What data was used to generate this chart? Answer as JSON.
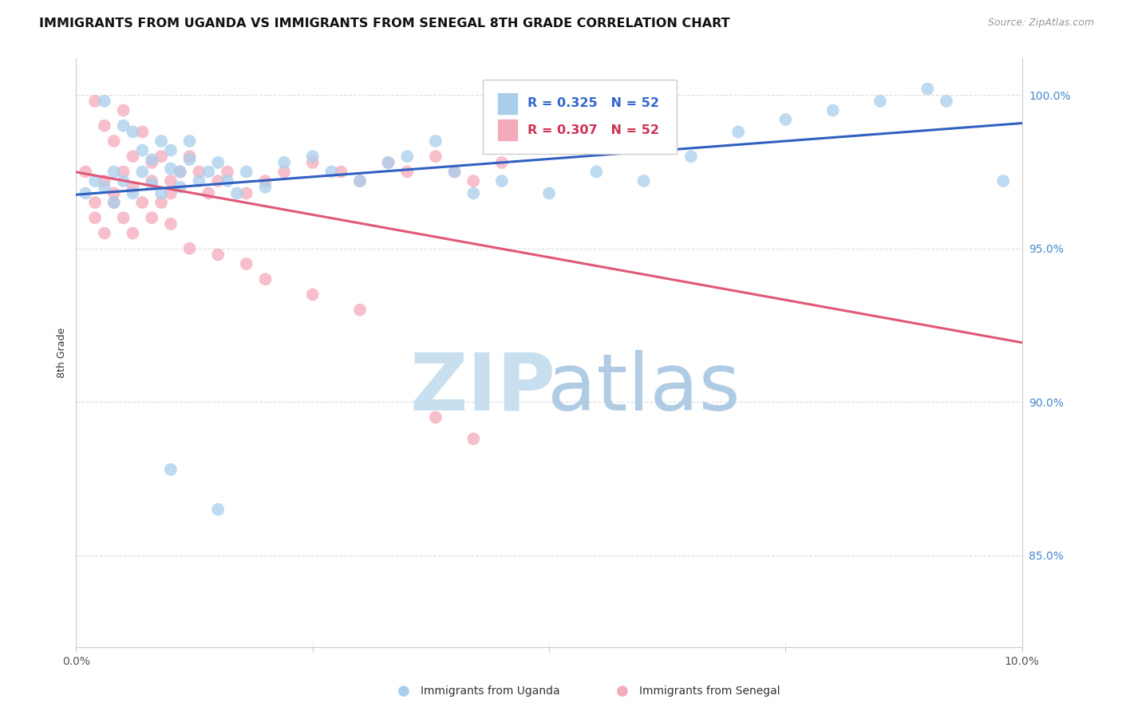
{
  "title": "IMMIGRANTS FROM UGANDA VS IMMIGRANTS FROM SENEGAL 8TH GRADE CORRELATION CHART",
  "source": "Source: ZipAtlas.com",
  "ylabel": "8th Grade",
  "y_ticks": [
    0.85,
    0.9,
    0.95,
    1.0
  ],
  "y_tick_labels": [
    "85.0%",
    "90.0%",
    "95.0%",
    "100.0%"
  ],
  "x_range": [
    0.0,
    0.1
  ],
  "y_range": [
    0.82,
    1.012
  ],
  "r_uganda": 0.325,
  "n_uganda": 52,
  "r_senegal": 0.307,
  "n_senegal": 52,
  "legend_label_uganda": "Immigrants from Uganda",
  "legend_label_senegal": "Immigrants from Senegal",
  "color_uganda": "#A8CEEC",
  "color_senegal": "#F5AABB",
  "line_color_uganda": "#3060C0",
  "line_color_senegal": "#E05878",
  "watermark_zip_color": "#C8DFF0",
  "watermark_atlas_color": "#B0CCE4",
  "uganda_x": [
    0.001,
    0.002,
    0.003,
    0.003,
    0.004,
    0.004,
    0.005,
    0.005,
    0.006,
    0.006,
    0.007,
    0.007,
    0.008,
    0.008,
    0.009,
    0.009,
    0.01,
    0.01,
    0.011,
    0.011,
    0.012,
    0.012,
    0.013,
    0.014,
    0.015,
    0.016,
    0.017,
    0.018,
    0.02,
    0.022,
    0.025,
    0.027,
    0.03,
    0.033,
    0.035,
    0.038,
    0.04,
    0.042,
    0.045,
    0.05,
    0.055,
    0.06,
    0.065,
    0.07,
    0.075,
    0.08,
    0.085,
    0.09,
    0.01,
    0.015,
    0.092,
    0.098
  ],
  "uganda_y": [
    0.968,
    0.972,
    0.97,
    0.998,
    0.975,
    0.965,
    0.99,
    0.972,
    0.988,
    0.968,
    0.982,
    0.975,
    0.979,
    0.971,
    0.985,
    0.968,
    0.976,
    0.982,
    0.975,
    0.97,
    0.985,
    0.979,
    0.972,
    0.975,
    0.978,
    0.972,
    0.968,
    0.975,
    0.97,
    0.978,
    0.98,
    0.975,
    0.972,
    0.978,
    0.98,
    0.985,
    0.975,
    0.968,
    0.972,
    0.968,
    0.975,
    0.972,
    0.98,
    0.988,
    0.992,
    0.995,
    0.998,
    1.002,
    0.878,
    0.865,
    0.998,
    0.972
  ],
  "senegal_x": [
    0.001,
    0.002,
    0.002,
    0.003,
    0.003,
    0.004,
    0.004,
    0.005,
    0.005,
    0.006,
    0.006,
    0.007,
    0.007,
    0.008,
    0.008,
    0.009,
    0.009,
    0.01,
    0.01,
    0.011,
    0.012,
    0.013,
    0.014,
    0.015,
    0.016,
    0.018,
    0.02,
    0.022,
    0.025,
    0.028,
    0.03,
    0.033,
    0.035,
    0.038,
    0.04,
    0.042,
    0.045,
    0.002,
    0.003,
    0.004,
    0.005,
    0.006,
    0.008,
    0.01,
    0.012,
    0.015,
    0.018,
    0.02,
    0.025,
    0.03,
    0.038,
    0.042
  ],
  "senegal_y": [
    0.975,
    0.965,
    0.998,
    0.972,
    0.99,
    0.985,
    0.968,
    0.995,
    0.975,
    0.98,
    0.97,
    0.965,
    0.988,
    0.972,
    0.978,
    0.965,
    0.98,
    0.972,
    0.968,
    0.975,
    0.98,
    0.975,
    0.968,
    0.972,
    0.975,
    0.968,
    0.972,
    0.975,
    0.978,
    0.975,
    0.972,
    0.978,
    0.975,
    0.98,
    0.975,
    0.972,
    0.978,
    0.96,
    0.955,
    0.965,
    0.96,
    0.955,
    0.96,
    0.958,
    0.95,
    0.948,
    0.945,
    0.94,
    0.935,
    0.93,
    0.895,
    0.888
  ]
}
